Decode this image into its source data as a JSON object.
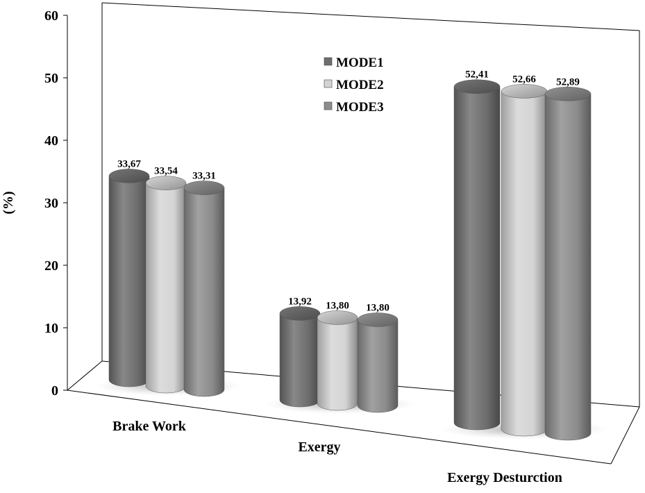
{
  "chart_data": {
    "type": "bar",
    "title": "",
    "xlabel": "",
    "ylabel": "(%)",
    "ylim": [
      0,
      60
    ],
    "yticks": [
      0,
      10,
      20,
      30,
      40,
      50,
      60
    ],
    "categories": [
      "Brake Work",
      "Exergy",
      "Exergy Desturction"
    ],
    "series": [
      {
        "name": "MODE1",
        "values": [
          33.67,
          13.92,
          52.41
        ],
        "labels": [
          "33,67",
          "13,92",
          "52,41"
        ]
      },
      {
        "name": "MODE2",
        "values": [
          33.54,
          13.8,
          52.66
        ],
        "labels": [
          "33,54",
          "13,80",
          "52,66"
        ]
      },
      {
        "name": "MODE3",
        "values": [
          33.31,
          13.8,
          52.89
        ],
        "labels": [
          "33,31",
          "13,80",
          "52,89"
        ]
      }
    ],
    "style": "3d-cylinder",
    "grid": false,
    "legend_position": "top-center",
    "colors": {
      "MODE1": "#6e6e6e",
      "MODE2": "#d4d4d4",
      "MODE3": "#8c8c8c"
    }
  }
}
